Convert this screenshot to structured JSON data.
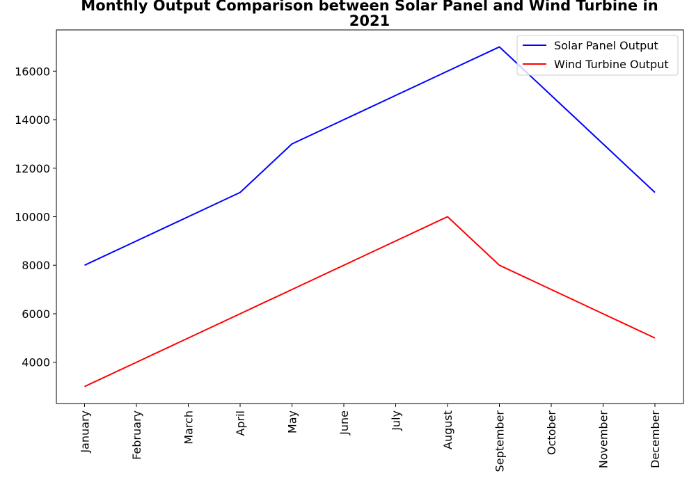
{
  "chart_data": {
    "type": "line",
    "title": "Monthly Output Comparison between Solar Panel and Wind Turbine in 2021",
    "title_lines": [
      "Monthly Output Comparison between Solar Panel and Wind Turbine in",
      "2021"
    ],
    "xlabel": "",
    "ylabel": "",
    "categories": [
      "January",
      "February",
      "March",
      "April",
      "May",
      "June",
      "July",
      "August",
      "September",
      "October",
      "November",
      "December"
    ],
    "series": [
      {
        "name": "Solar Panel Output",
        "color": "#0000ff",
        "values": [
          8000,
          9000,
          10000,
          11000,
          13000,
          14000,
          15000,
          16000,
          17000,
          15000,
          13000,
          11000
        ]
      },
      {
        "name": "Wind Turbine Output",
        "color": "#ff0000",
        "values": [
          3000,
          4000,
          5000,
          6000,
          7000,
          8000,
          9000,
          10000,
          8000,
          7000,
          6000,
          5000
        ]
      }
    ],
    "ylim": [
      2300,
      17700
    ],
    "yticks": [
      4000,
      6000,
      8000,
      10000,
      12000,
      14000,
      16000
    ],
    "grid": false,
    "legend_position": "top-right"
  }
}
